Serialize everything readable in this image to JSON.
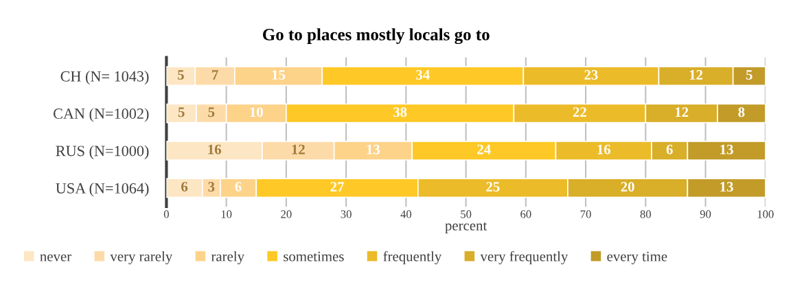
{
  "chart_data": {
    "type": "bar",
    "orientation": "horizontal",
    "stacked": true,
    "title": "Go to places mostly locals go to",
    "xlabel": "percent",
    "categories": [
      "CH (N= 1043)",
      "CAN (N=1002)",
      "RUS (N=1000)",
      "USA (N=1064)"
    ],
    "series": [
      {
        "name": "never",
        "color": "#fde6c4",
        "values": [
          4.8,
          5,
          16,
          6
        ],
        "value_labels": [
          "5",
          "5",
          "16",
          "6"
        ]
      },
      {
        "name": "very rarely",
        "color": "#fddba8",
        "values": [
          6.6,
          5,
          12,
          3
        ],
        "value_labels": [
          "7",
          "5",
          "12",
          "3"
        ]
      },
      {
        "name": "rarely",
        "color": "#fdd38a",
        "values": [
          14.6,
          10,
          13,
          6
        ],
        "value_labels": [
          "15",
          "10",
          "13",
          "6"
        ]
      },
      {
        "name": "sometimes",
        "color": "#fec926",
        "values": [
          33.6,
          38,
          24,
          27
        ],
        "value_labels": [
          "34",
          "38",
          "24",
          "27"
        ]
      },
      {
        "name": "frequently",
        "color": "#ecbb29",
        "values": [
          22.6,
          22,
          16,
          25
        ],
        "value_labels": [
          "23",
          "22",
          "16",
          "25"
        ]
      },
      {
        "name": "very frequently",
        "color": "#d9ae28",
        "values": [
          12.4,
          12,
          6,
          20
        ],
        "value_labels": [
          "12",
          "12",
          "6",
          "20"
        ]
      },
      {
        "name": "every time",
        "color": "#c29b29",
        "values": [
          5.4,
          8,
          13,
          13
        ],
        "value_labels": [
          "5",
          "8",
          "13",
          "13"
        ]
      }
    ],
    "xlim": [
      0,
      100
    ],
    "xticks": [
      0,
      10,
      20,
      30,
      40,
      50,
      60,
      70,
      80,
      90,
      100
    ],
    "grid": "x",
    "legend": "bottom"
  }
}
